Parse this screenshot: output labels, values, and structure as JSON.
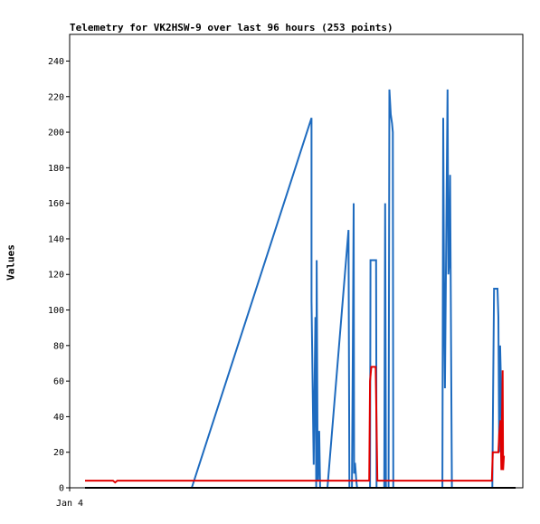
{
  "chart_data": {
    "type": "line",
    "title": "Telemetry for VK2HSW-9 over last 96 hours (253 points)",
    "xlabel": "",
    "ylabel": "Values",
    "ylim": [
      0,
      255
    ],
    "xlim": [
      0,
      100
    ],
    "x_tick_labels": [
      {
        "x": 0,
        "label": "Jan 4"
      }
    ],
    "y_ticks": [
      0,
      20,
      40,
      60,
      80,
      100,
      120,
      140,
      160,
      180,
      200,
      220,
      240
    ],
    "grid": false,
    "legend": "none",
    "series": [
      {
        "color": "#1e6bbf",
        "points": [
          [
            24.8,
            0
          ],
          [
            52.6,
            208
          ],
          [
            52.6,
            105
          ],
          [
            53.1,
            13
          ],
          [
            53.2,
            32
          ],
          [
            53.5,
            96
          ],
          [
            53.7,
            0
          ],
          [
            53.8,
            128
          ],
          [
            54.0,
            30
          ],
          [
            54.1,
            4
          ],
          [
            54.4,
            32
          ],
          [
            54.6,
            0
          ],
          [
            56.3,
            0
          ],
          [
            61.2,
            145
          ],
          [
            61.4,
            0
          ],
          [
            62.0,
            0
          ],
          [
            62.2,
            80
          ],
          [
            62.4,
            160
          ],
          [
            62.5,
            8
          ],
          [
            62.7,
            14
          ],
          [
            63.0,
            4
          ],
          [
            63.2,
            0
          ],
          [
            66.2,
            0
          ],
          [
            66.3,
            128
          ],
          [
            67.6,
            128
          ],
          [
            67.7,
            0
          ],
          [
            69.5,
            0
          ],
          [
            69.7,
            160
          ],
          [
            69.9,
            0
          ],
          [
            70.5,
            0
          ],
          [
            70.7,
            224
          ],
          [
            71.0,
            210
          ],
          [
            71.3,
            205
          ],
          [
            71.5,
            200
          ],
          [
            71.6,
            0
          ],
          [
            83.0,
            0
          ],
          [
            83.2,
            208
          ],
          [
            83.4,
            104
          ],
          [
            83.6,
            56
          ],
          [
            84.0,
            168
          ],
          [
            84.2,
            224
          ],
          [
            84.4,
            120
          ],
          [
            84.6,
            128
          ],
          [
            84.8,
            176
          ],
          [
            85.0,
            88
          ],
          [
            85.2,
            0
          ],
          [
            94.6,
            0
          ],
          [
            94.8,
            56
          ],
          [
            95.0,
            112
          ],
          [
            95.8,
            112
          ],
          [
            96.0,
            96
          ],
          [
            96.2,
            20
          ],
          [
            96.4,
            80
          ],
          [
            96.6,
            60
          ],
          [
            96.8,
            16
          ],
          [
            97.2,
            14
          ]
        ]
      },
      {
        "color": "#e00000",
        "points": [
          [
            0,
            4
          ],
          [
            6.5,
            4
          ],
          [
            7.0,
            3
          ],
          [
            7.5,
            4
          ],
          [
            66.0,
            4
          ],
          [
            66.2,
            60
          ],
          [
            66.5,
            68
          ],
          [
            67.5,
            68
          ],
          [
            67.7,
            35
          ],
          [
            67.9,
            4
          ],
          [
            94.5,
            4
          ],
          [
            94.7,
            20
          ],
          [
            96.0,
            20
          ],
          [
            96.2,
            30
          ],
          [
            96.5,
            38
          ],
          [
            96.7,
            10
          ],
          [
            97.0,
            66
          ],
          [
            97.1,
            10
          ],
          [
            97.3,
            18
          ]
        ]
      },
      {
        "color": "#000000",
        "points": [
          [
            0,
            0
          ],
          [
            100,
            0
          ]
        ]
      }
    ]
  }
}
